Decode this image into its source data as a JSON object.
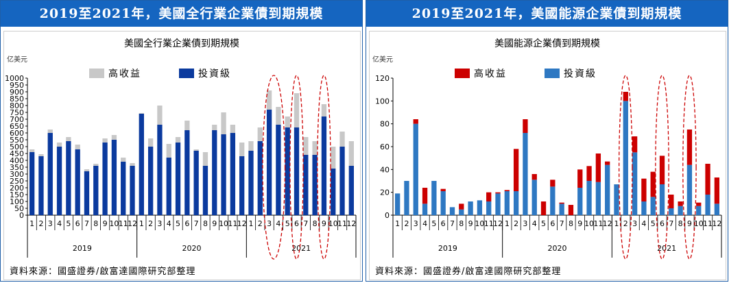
{
  "panels": [
    {
      "banner": "2019至2021年，美國全行業企業債到期規模",
      "source": "資料來源：國盛證券/啟富達國際研究部整理"
    },
    {
      "banner": "2019至2021年，美國能源企業債到期規模",
      "source": "資料來源：國盛證券/啟富達國際研究部整理"
    }
  ],
  "chart_data": [
    {
      "type": "bar",
      "stacked": true,
      "title": "美國全行業企業債到期規模",
      "unit_label": "亿美元",
      "ylim": [
        0,
        1000
      ],
      "yticks": [
        0,
        50,
        100,
        150,
        200,
        250,
        300,
        350,
        400,
        450,
        500,
        550,
        600,
        650,
        700,
        750,
        800,
        850,
        900,
        950,
        1000
      ],
      "categories": [
        "1",
        "2",
        "3",
        "4",
        "5",
        "6",
        "7",
        "8",
        "9",
        "10",
        "11",
        "12",
        "1",
        "2",
        "3",
        "4",
        "5",
        "6",
        "7",
        "8",
        "9",
        "10",
        "11",
        "12",
        "1",
        "2",
        "3",
        "4",
        "5",
        "6",
        "7",
        "8",
        "9",
        "10",
        "11",
        "12"
      ],
      "year_groups": [
        "2019",
        "2020",
        "2021"
      ],
      "legend_position": "top",
      "series": [
        {
          "name": "投資級",
          "color": "#0b3a9e",
          "values": [
            460,
            430,
            600,
            500,
            540,
            480,
            320,
            360,
            530,
            550,
            390,
            360,
            740,
            500,
            660,
            420,
            530,
            620,
            470,
            360,
            620,
            590,
            600,
            430,
            470,
            540,
            770,
            660,
            640,
            640,
            440,
            440,
            720,
            340,
            500,
            360
          ]
        },
        {
          "name": "高收益",
          "color": "#c8c8c8",
          "values": [
            20,
            15,
            25,
            30,
            30,
            35,
            15,
            15,
            30,
            35,
            30,
            20,
            5,
            60,
            140,
            100,
            40,
            70,
            10,
            100,
            40,
            160,
            60,
            100,
            70,
            100,
            140,
            130,
            80,
            250,
            130,
            100,
            90,
            160,
            110,
            180
          ]
        }
      ],
      "highlights": [
        "2021-3至4月",
        "2021-6月",
        "2021-9月"
      ]
    },
    {
      "type": "bar",
      "stacked": true,
      "title": "美國能源企業債到期規模",
      "unit_label": "亿美元",
      "ylim": [
        0,
        120
      ],
      "yticks": [
        0,
        20,
        40,
        60,
        80,
        100,
        120
      ],
      "categories": [
        "1",
        "2",
        "3",
        "4",
        "5",
        "6",
        "7",
        "8",
        "9",
        "10",
        "11",
        "12",
        "1",
        "2",
        "3",
        "4",
        "5",
        "6",
        "7",
        "8",
        "9",
        "10",
        "11",
        "12",
        "1",
        "2",
        "3",
        "4",
        "5",
        "6",
        "7",
        "8",
        "9",
        "10",
        "11",
        "12"
      ],
      "year_groups": [
        "2019",
        "2020",
        "2021"
      ],
      "legend_position": "top",
      "series": [
        {
          "name": "投資級",
          "color": "#2e78c2",
          "values": [
            19,
            30,
            80,
            10,
            30,
            21,
            7,
            5,
            12,
            13,
            12,
            19,
            21,
            21,
            72,
            31,
            0,
            25,
            10,
            0,
            24,
            30,
            29,
            44,
            27,
            100,
            55,
            12,
            16,
            27,
            6,
            8,
            44,
            8,
            18,
            10
          ]
        },
        {
          "name": "高收益",
          "color": "#cc0000",
          "values": [
            0,
            0,
            4,
            14,
            0,
            2,
            0,
            5,
            0,
            0,
            8,
            1,
            1,
            37,
            12,
            5,
            12,
            6,
            1,
            9,
            16,
            13,
            25,
            3,
            0,
            8,
            14,
            20,
            22,
            25,
            12,
            4,
            31,
            3,
            27,
            23
          ]
        }
      ],
      "highlights": [
        "2021-2月",
        "2021-6月",
        "2021-9月"
      ]
    }
  ]
}
